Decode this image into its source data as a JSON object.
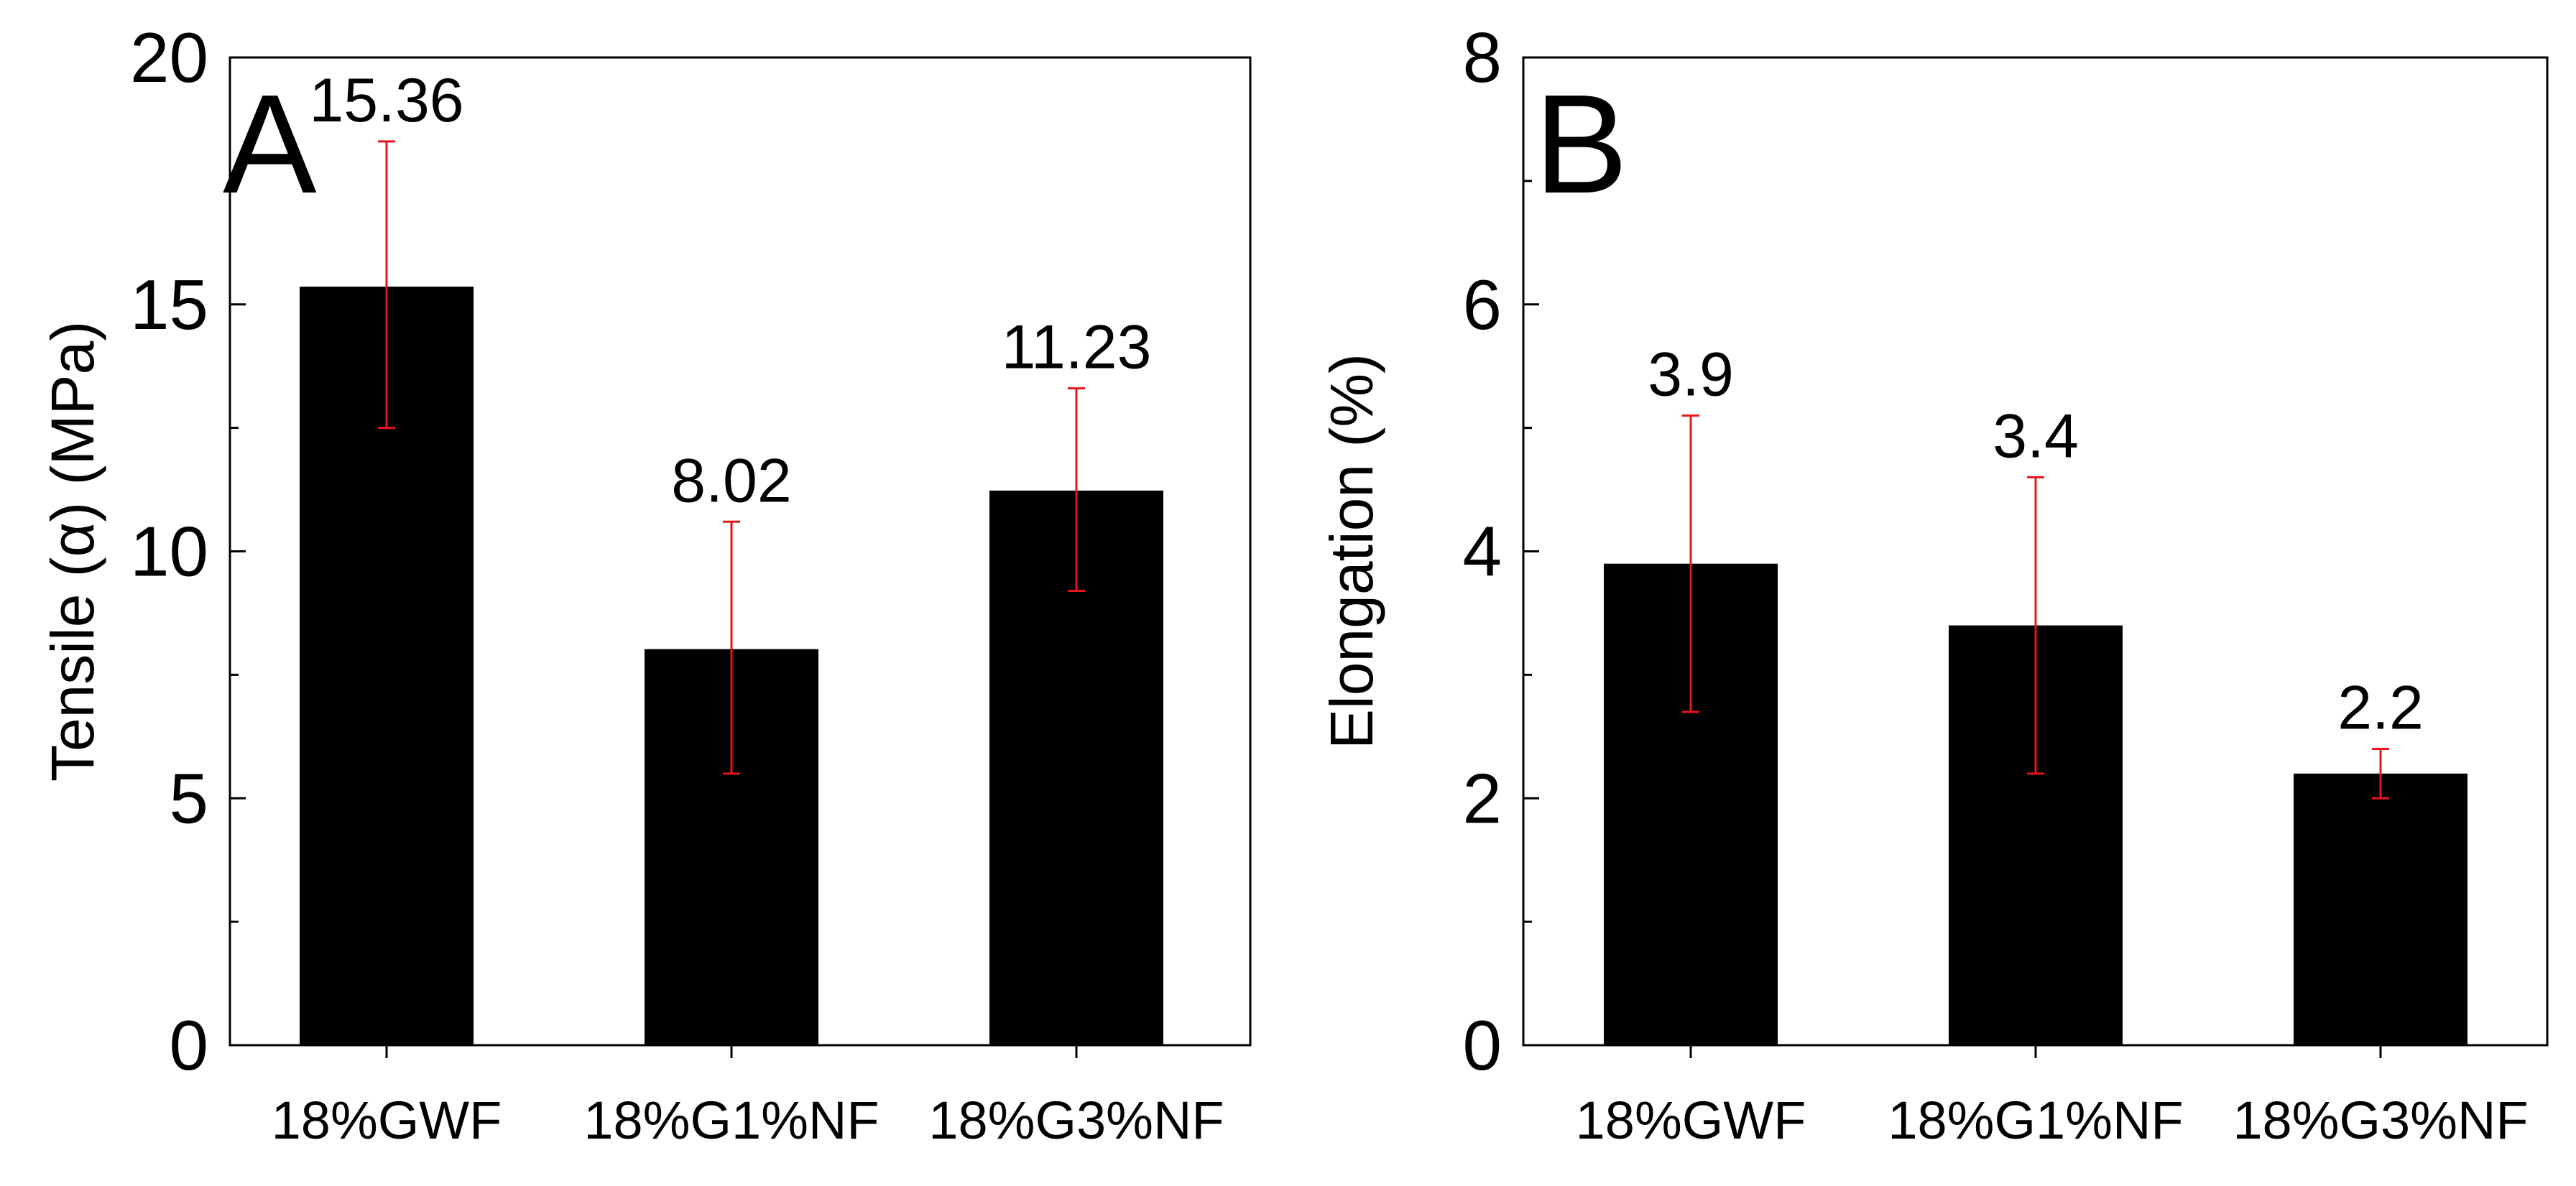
{
  "chart_data": [
    {
      "type": "bar",
      "panel_label": "A",
      "categories": [
        "18%GWF",
        "18%G1%NF",
        "18%G3%NF"
      ],
      "values": [
        15.36,
        8.02,
        11.23
      ],
      "value_labels": [
        "15.36",
        "8.02",
        "11.23"
      ],
      "error_low": [
        12.5,
        5.5,
        9.2
      ],
      "error_high": [
        18.3,
        10.6,
        13.3
      ],
      "ylabel": "Tensile (α) (MPa)",
      "xlabel": "",
      "ylim": [
        0,
        20
      ],
      "yticks": [
        0,
        5,
        10,
        15,
        20
      ],
      "ytick_labels": [
        "0",
        "5",
        "10",
        "15",
        "20"
      ],
      "bar_color": "#000000",
      "error_color": "#e8141a",
      "grid": false
    },
    {
      "type": "bar",
      "panel_label": "B",
      "categories": [
        "18%GWF",
        "18%G1%NF",
        "18%G3%NF"
      ],
      "values": [
        3.9,
        3.4,
        2.2
      ],
      "value_labels": [
        "3.9",
        "3.4",
        "2.2"
      ],
      "error_low": [
        2.7,
        2.2,
        2.0
      ],
      "error_high": [
        5.1,
        4.6,
        2.4
      ],
      "ylabel": "Elongation (%)",
      "xlabel": "",
      "ylim": [
        0,
        8
      ],
      "yticks": [
        0,
        2,
        4,
        6,
        8
      ],
      "ytick_labels": [
        "0",
        "2",
        "4",
        "6",
        "8"
      ],
      "bar_color": "#000000",
      "error_color": "#e8141a",
      "grid": false
    }
  ]
}
